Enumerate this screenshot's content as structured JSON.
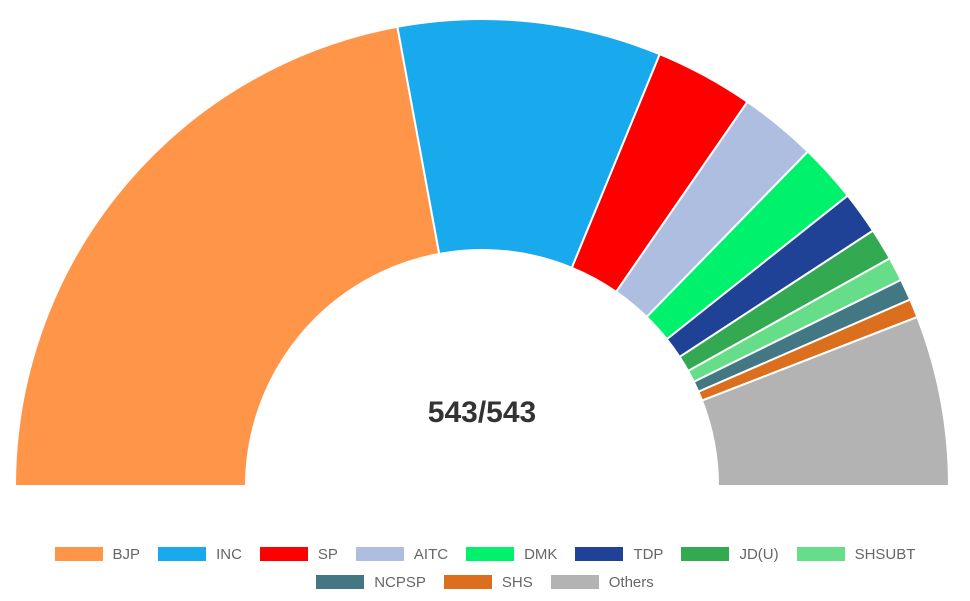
{
  "chart_data": {
    "type": "pie",
    "subtype": "semicircle-parliament",
    "center_text": "543/543",
    "total": 543,
    "series": [
      {
        "name": "BJP",
        "value": 240,
        "color": "#ff9548"
      },
      {
        "name": "INC",
        "value": 99,
        "color": "#19aaed"
      },
      {
        "name": "SP",
        "value": 37,
        "color": "#ff0000"
      },
      {
        "name": "AITC",
        "value": 29,
        "color": "#aebee0"
      },
      {
        "name": "DMK",
        "value": 22,
        "color": "#00f26d"
      },
      {
        "name": "TDP",
        "value": 16,
        "color": "#1f4196"
      },
      {
        "name": "JD(U)",
        "value": 12,
        "color": "#33a952"
      },
      {
        "name": "SHSUBT",
        "value": 9,
        "color": "#66dd88"
      },
      {
        "name": "NCPSP",
        "value": 8,
        "color": "#427783"
      },
      {
        "name": "SHS",
        "value": 7,
        "color": "#db6f1e"
      },
      {
        "name": "Others",
        "value": 64,
        "color": "#b3b3b3"
      }
    ],
    "legend_position": "bottom"
  }
}
